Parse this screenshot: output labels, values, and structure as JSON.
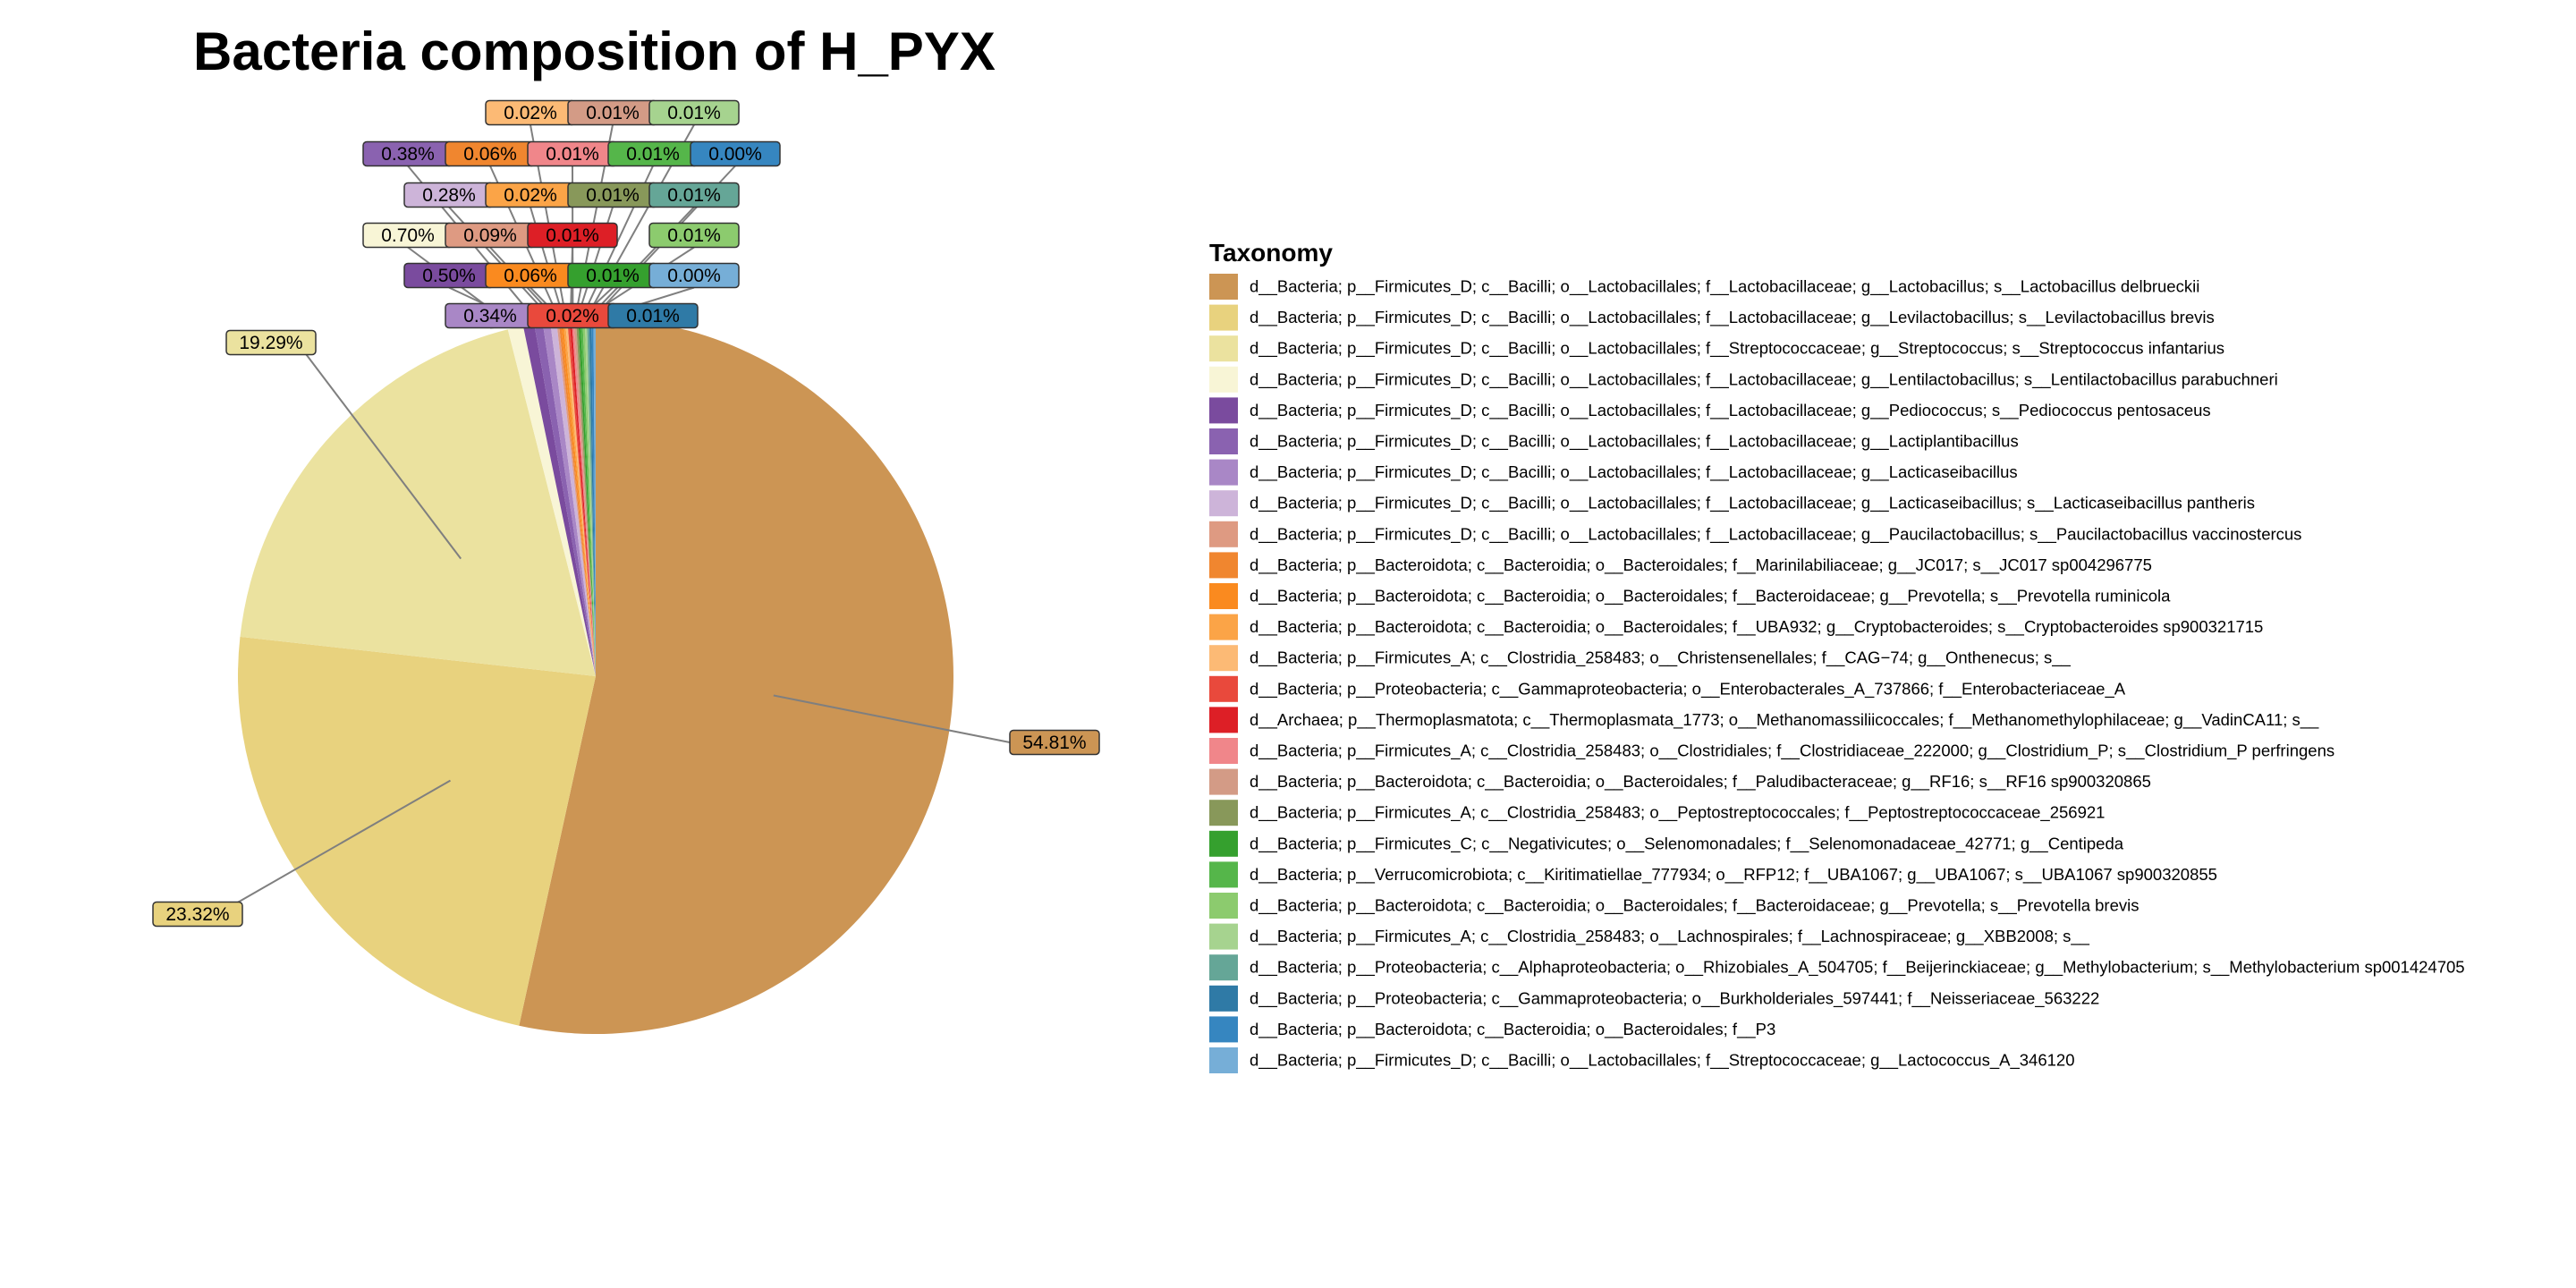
{
  "chart_data": {
    "type": "pie",
    "title": "Bacteria composition of H_PYX",
    "legend_title": "Taxonomy",
    "legend_position": "right",
    "slices": [
      {
        "name": "d__Bacteria; p__Firmicutes_D; c__Bacilli; o__Lactobacillales; f__Lactobacillaceae; g__Lactobacillus; s__Lactobacillus delbrueckii",
        "value": 54.81,
        "label": "54.81%",
        "color": "#CC9554"
      },
      {
        "name": "d__Bacteria; p__Firmicutes_D; c__Bacilli; o__Lactobacillales; f__Lactobacillaceae; g__Levilactobacillus; s__Levilactobacillus brevis",
        "value": 23.32,
        "label": "23.32%",
        "color": "#E8D27E"
      },
      {
        "name": "d__Bacteria; p__Firmicutes_D; c__Bacilli; o__Lactobacillales; f__Streptococcaceae; g__Streptococcus; s__Streptococcus infantarius",
        "value": 19.29,
        "label": "19.29%",
        "color": "#EBE29F"
      },
      {
        "name": "d__Bacteria; p__Firmicutes_D; c__Bacilli; o__Lactobacillales; f__Lactobacillaceae; g__Lentilactobacillus; s__Lentilactobacillus parabuchneri",
        "value": 0.7,
        "label": "0.70%",
        "color": "#F8F5D6"
      },
      {
        "name": "d__Bacteria; p__Firmicutes_D; c__Bacilli; o__Lactobacillales; f__Lactobacillaceae; g__Pediococcus; s__Pediococcus pentosaceus",
        "value": 0.5,
        "label": "0.50%",
        "color": "#7A4B9E"
      },
      {
        "name": "d__Bacteria; p__Firmicutes_D; c__Bacilli; o__Lactobacillales; f__Lactobacillaceae; g__Lactiplantibacillus",
        "value": 0.38,
        "label": "0.38%",
        "color": "#8A62B0"
      },
      {
        "name": "d__Bacteria; p__Firmicutes_D; c__Bacilli; o__Lactobacillales; f__Lactobacillaceae; g__Lacticaseibacillus",
        "value": 0.34,
        "label": "0.34%",
        "color": "#A987C6"
      },
      {
        "name": "d__Bacteria; p__Firmicutes_D; c__Bacilli; o__Lactobacillales; f__Lactobacillaceae; g__Lacticaseibacillus; s__Lacticaseibacillus pantheris",
        "value": 0.28,
        "label": "0.28%",
        "color": "#CDB4D9"
      },
      {
        "name": "d__Bacteria; p__Firmicutes_D; c__Bacilli; o__Lactobacillales; f__Lactobacillaceae; g__Paucilactobacillus; s__Paucilactobacillus vaccinostercus",
        "value": 0.09,
        "label": "0.09%",
        "color": "#DE9A82"
      },
      {
        "name": "d__Bacteria; p__Bacteroidota; c__Bacteroidia; o__Bacteroidales; f__Marinilabiliaceae; g__JC017; s__JC017 sp004296775",
        "value": 0.06,
        "label": "0.06%",
        "color": "#F0862F"
      },
      {
        "name": "d__Bacteria; p__Bacteroidota; c__Bacteroidia; o__Bacteroidales; f__Bacteroidaceae; g__Prevotella; s__Prevotella ruminicola",
        "value": 0.06,
        "label": "0.06%",
        "color": "#FA8A1F"
      },
      {
        "name": "d__Bacteria; p__Bacteroidota; c__Bacteroidia; o__Bacteroidales; f__UBA932; g__Cryptobacteroides; s__Cryptobacteroides sp900321715",
        "value": 0.02,
        "label": "0.02%",
        "color": "#FBA447"
      },
      {
        "name": "d__Bacteria; p__Firmicutes_A; c__Clostridia_258483; o__Christensenellales; f__CAG−74; g__Onthenecus; s__",
        "value": 0.02,
        "label": "0.02%",
        "color": "#FCBA75"
      },
      {
        "name": "d__Bacteria; p__Proteobacteria; c__Gammaproteobacteria; o__Enterobacterales_A_737866; f__Enterobacteriaceae_A",
        "value": 0.02,
        "label": "0.02%",
        "color": "#E9493C"
      },
      {
        "name": "d__Archaea; p__Thermoplasmatota; c__Thermoplasmata_1773; o__Methanomassiliicoccales; f__Methanomethylophilaceae; g__VadinCA11; s__",
        "value": 0.01,
        "label": "0.01%",
        "color": "#DD1F26"
      },
      {
        "name": "d__Bacteria; p__Firmicutes_A; c__Clostridia_258483; o__Clostridiales; f__Clostridiaceae_222000; g__Clostridium_P; s__Clostridium_P perfringens",
        "value": 0.01,
        "label": "0.01%",
        "color": "#F0868A"
      },
      {
        "name": "d__Bacteria; p__Bacteroidota; c__Bacteroidia; o__Bacteroidales; f__Paludibacteraceae; g__RF16; s__RF16 sp900320865",
        "value": 0.01,
        "label": "0.01%",
        "color": "#D39B86"
      },
      {
        "name": "d__Bacteria; p__Firmicutes_A; c__Clostridia_258483; o__Peptostreptococcales; f__Peptostreptococcaceae_256921",
        "value": 0.01,
        "label": "0.01%",
        "color": "#88985A"
      },
      {
        "name": "d__Bacteria; p__Firmicutes_C; c__Negativicutes; o__Selenomonadales; f__Selenomonadaceae_42771; g__Centipeda",
        "value": 0.01,
        "label": "0.01%",
        "color": "#35A02E"
      },
      {
        "name": "d__Bacteria; p__Verrucomicrobiota; c__Kiritimatiellae_777934; o__RFP12; f__UBA1067; g__UBA1067; s__UBA1067 sp900320855",
        "value": 0.01,
        "label": "0.01%",
        "color": "#55B64A"
      },
      {
        "name": "d__Bacteria; p__Bacteroidota; c__Bacteroidia; o__Bacteroidales; f__Bacteroidaceae; g__Prevotella; s__Prevotella brevis",
        "value": 0.01,
        "label": "0.01%",
        "color": "#8CCB6E"
      },
      {
        "name": "d__Bacteria; p__Firmicutes_A; c__Clostridia_258483; o__Lachnospirales; f__Lachnospiraceae; g__XBB2008; s__",
        "value": 0.01,
        "label": "0.01%",
        "color": "#A6D38F"
      },
      {
        "name": "d__Bacteria; p__Proteobacteria; c__Alphaproteobacteria; o__Rhizobiales_A_504705; f__Beijerinckiaceae; g__Methylobacterium; s__Methylobacterium sp001424705",
        "value": 0.01,
        "label": "0.01%",
        "color": "#65A697"
      },
      {
        "name": "d__Bacteria; p__Proteobacteria; c__Gammaproteobacteria; o__Burkholderiales_597441; f__Neisseriaceae_563222",
        "value": 0.01,
        "label": "0.01%",
        "color": "#2F7AA6"
      },
      {
        "name": "d__Bacteria; p__Bacteroidota; c__Bacteroidia; o__Bacteroidales; f__P3",
        "value": 0.0,
        "label": "0.00%",
        "color": "#3686C0"
      },
      {
        "name": "d__Bacteria; p__Firmicutes_D; c__Bacilli; o__Lactobacillales; f__Streptococcaceae; g__Lactococcus_A_346120",
        "value": 0.0,
        "label": "0.00%",
        "color": "#76AED7"
      }
    ]
  }
}
